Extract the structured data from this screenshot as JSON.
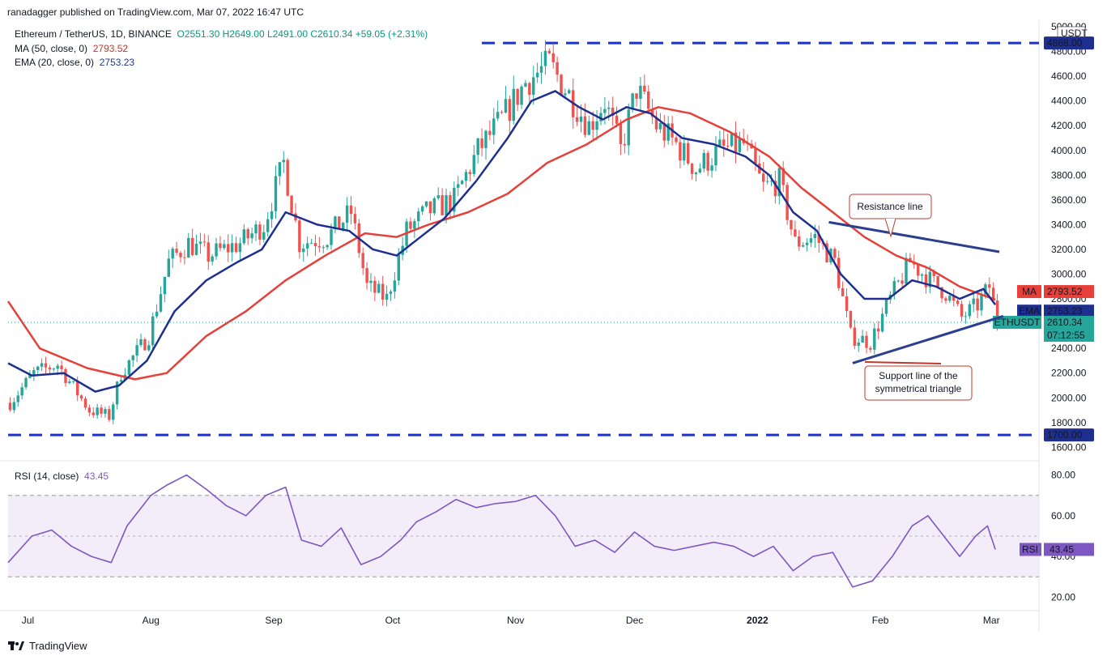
{
  "header": {
    "publisher": "ranadagger published on TradingView.com, Mar 07, 2022 16:47 UTC"
  },
  "legend": {
    "symbol": "Ethereum / TetherUS, 1D, BINANCE",
    "ohlc": "O2551.30  H2649.00  L2491.00  C2610.34  +59.05 (+2.31%)",
    "ma_label": "MA (50, close, 0)",
    "ma_value": "2793.52",
    "ema_label": "EMA (20, close, 0)",
    "ema_value": "2753.23",
    "rsi_label": "RSI (14, close)",
    "rsi_value": "43.45"
  },
  "footer": {
    "brand": "TradingView"
  },
  "colors": {
    "ma": "#e5403a",
    "ema": "#1e2f8f",
    "up": "#26a69a",
    "down": "#ef5350",
    "rsi": "#7e57c2",
    "level": "#1a33c9",
    "annotation": "#c0392b",
    "trend": "#2b3f8f"
  },
  "chart_data": [
    {
      "type": "candlestick",
      "title": "Ethereum / TetherUS, 1D, BINANCE",
      "y_unit": "USDT",
      "ylim": [
        1550,
        5000
      ],
      "y_ticks": [
        1600,
        1800,
        2000,
        2200,
        2400,
        2600,
        2800,
        3000,
        3200,
        3400,
        3600,
        3800,
        4000,
        4200,
        4400,
        4600,
        4800,
        5000
      ],
      "x_ticks": [
        "Jul",
        "Aug",
        "Sep",
        "Oct",
        "Nov",
        "Dec",
        "2022",
        "Feb",
        "Mar"
      ],
      "x_tick_days": [
        5,
        36,
        67,
        97,
        128,
        158,
        189,
        220,
        248
      ],
      "total_days": 260,
      "last_day": 249,
      "price_path": [
        {
          "d": 0,
          "p": 1960
        },
        {
          "d": 6,
          "p": 2200
        },
        {
          "d": 12,
          "p": 2270
        },
        {
          "d": 20,
          "p": 1900
        },
        {
          "d": 25,
          "p": 1850
        },
        {
          "d": 28,
          "p": 2200
        },
        {
          "d": 35,
          "p": 2500
        },
        {
          "d": 40,
          "p": 3100
        },
        {
          "d": 45,
          "p": 3250
        },
        {
          "d": 50,
          "p": 3150
        },
        {
          "d": 58,
          "p": 3250
        },
        {
          "d": 64,
          "p": 3400
        },
        {
          "d": 69,
          "p": 3900
        },
        {
          "d": 73,
          "p": 3250
        },
        {
          "d": 80,
          "p": 3300
        },
        {
          "d": 86,
          "p": 3500
        },
        {
          "d": 90,
          "p": 2900
        },
        {
          "d": 95,
          "p": 2800
        },
        {
          "d": 100,
          "p": 3350
        },
        {
          "d": 105,
          "p": 3500
        },
        {
          "d": 112,
          "p": 3600
        },
        {
          "d": 118,
          "p": 4000
        },
        {
          "d": 124,
          "p": 4250
        },
        {
          "d": 130,
          "p": 4550
        },
        {
          "d": 136,
          "p": 4700
        },
        {
          "d": 141,
          "p": 4450
        },
        {
          "d": 146,
          "p": 4200
        },
        {
          "d": 150,
          "p": 4400
        },
        {
          "d": 154,
          "p": 4000
        },
        {
          "d": 158,
          "p": 4500
        },
        {
          "d": 163,
          "p": 4200
        },
        {
          "d": 168,
          "p": 4050
        },
        {
          "d": 173,
          "p": 3850
        },
        {
          "d": 179,
          "p": 4000
        },
        {
          "d": 185,
          "p": 4050
        },
        {
          "d": 190,
          "p": 3700
        },
        {
          "d": 194,
          "p": 3750
        },
        {
          "d": 198,
          "p": 3250
        },
        {
          "d": 203,
          "p": 3300
        },
        {
          "d": 208,
          "p": 3100
        },
        {
          "d": 212,
          "p": 2500
        },
        {
          "d": 217,
          "p": 2450
        },
        {
          "d": 222,
          "p": 2800
        },
        {
          "d": 227,
          "p": 3100
        },
        {
          "d": 232,
          "p": 2950
        },
        {
          "d": 236,
          "p": 2850
        },
        {
          "d": 240,
          "p": 2650
        },
        {
          "d": 244,
          "p": 2750
        },
        {
          "d": 247,
          "p": 2900
        },
        {
          "d": 249,
          "p": 2610
        }
      ],
      "series": [
        {
          "name": "MA",
          "label_value": "2793.52",
          "points": [
            {
              "d": 0,
              "p": 2780
            },
            {
              "d": 8,
              "p": 2400
            },
            {
              "d": 20,
              "p": 2240
            },
            {
              "d": 32,
              "p": 2150
            },
            {
              "d": 40,
              "p": 2200
            },
            {
              "d": 50,
              "p": 2500
            },
            {
              "d": 60,
              "p": 2700
            },
            {
              "d": 70,
              "p": 2950
            },
            {
              "d": 80,
              "p": 3150
            },
            {
              "d": 90,
              "p": 3330
            },
            {
              "d": 98,
              "p": 3300
            },
            {
              "d": 106,
              "p": 3400
            },
            {
              "d": 116,
              "p": 3500
            },
            {
              "d": 126,
              "p": 3650
            },
            {
              "d": 136,
              "p": 3900
            },
            {
              "d": 146,
              "p": 4050
            },
            {
              "d": 156,
              "p": 4250
            },
            {
              "d": 164,
              "p": 4350
            },
            {
              "d": 172,
              "p": 4300
            },
            {
              "d": 182,
              "p": 4150
            },
            {
              "d": 192,
              "p": 3950
            },
            {
              "d": 200,
              "p": 3700
            },
            {
              "d": 208,
              "p": 3500
            },
            {
              "d": 216,
              "p": 3300
            },
            {
              "d": 224,
              "p": 3150
            },
            {
              "d": 232,
              "p": 3050
            },
            {
              "d": 240,
              "p": 2900
            },
            {
              "d": 249,
              "p": 2793.52
            }
          ]
        },
        {
          "name": "EMA",
          "label_value": "2753.23",
          "points": [
            {
              "d": 0,
              "p": 2280
            },
            {
              "d": 6,
              "p": 2180
            },
            {
              "d": 14,
              "p": 2200
            },
            {
              "d": 22,
              "p": 2050
            },
            {
              "d": 28,
              "p": 2100
            },
            {
              "d": 35,
              "p": 2300
            },
            {
              "d": 42,
              "p": 2700
            },
            {
              "d": 50,
              "p": 2950
            },
            {
              "d": 58,
              "p": 3100
            },
            {
              "d": 64,
              "p": 3200
            },
            {
              "d": 70,
              "p": 3500
            },
            {
              "d": 78,
              "p": 3400
            },
            {
              "d": 86,
              "p": 3350
            },
            {
              "d": 92,
              "p": 3200
            },
            {
              "d": 98,
              "p": 3150
            },
            {
              "d": 104,
              "p": 3300
            },
            {
              "d": 110,
              "p": 3450
            },
            {
              "d": 118,
              "p": 3750
            },
            {
              "d": 126,
              "p": 4100
            },
            {
              "d": 132,
              "p": 4400
            },
            {
              "d": 138,
              "p": 4480
            },
            {
              "d": 144,
              "p": 4350
            },
            {
              "d": 150,
              "p": 4250
            },
            {
              "d": 156,
              "p": 4350
            },
            {
              "d": 162,
              "p": 4300
            },
            {
              "d": 170,
              "p": 4100
            },
            {
              "d": 178,
              "p": 4050
            },
            {
              "d": 186,
              "p": 3950
            },
            {
              "d": 192,
              "p": 3800
            },
            {
              "d": 198,
              "p": 3500
            },
            {
              "d": 204,
              "p": 3350
            },
            {
              "d": 210,
              "p": 3000
            },
            {
              "d": 216,
              "p": 2800
            },
            {
              "d": 222,
              "p": 2800
            },
            {
              "d": 228,
              "p": 2950
            },
            {
              "d": 234,
              "p": 2900
            },
            {
              "d": 240,
              "p": 2800
            },
            {
              "d": 246,
              "p": 2880
            },
            {
              "d": 249,
              "p": 2753.23
            }
          ]
        }
      ],
      "last_price_label": "ETHUSDT",
      "last_price": "2610.34",
      "countdown": "07:12:55",
      "levels": [
        {
          "value": 4868.0,
          "label": "4868.00"
        },
        {
          "value": 1700.0,
          "label": "1700.00"
        }
      ],
      "trendlines": [
        {
          "name": "Resistance line",
          "from": {
            "d": 207,
            "p": 3420
          },
          "to": {
            "d": 250,
            "p": 3180
          }
        },
        {
          "name": "Support line of the symmetrical triangle",
          "from": {
            "d": 213,
            "p": 2280
          },
          "to": {
            "d": 251,
            "p": 2660
          }
        }
      ],
      "annotations": [
        {
          "text": "Resistance line"
        },
        {
          "text": "Support line of the symmetrical triangle"
        }
      ]
    },
    {
      "type": "line",
      "title": "RSI (14, close)",
      "name": "RSI",
      "ylim": [
        15,
        85
      ],
      "y_ticks": [
        20,
        40,
        60,
        80
      ],
      "band": [
        30,
        70
      ],
      "mid": 50,
      "last_value": "43.45",
      "points": [
        {
          "d": 0,
          "p": 37
        },
        {
          "d": 6,
          "p": 50
        },
        {
          "d": 11,
          "p": 53
        },
        {
          "d": 16,
          "p": 45
        },
        {
          "d": 21,
          "p": 40
        },
        {
          "d": 26,
          "p": 37
        },
        {
          "d": 30,
          "p": 55
        },
        {
          "d": 36,
          "p": 70
        },
        {
          "d": 40,
          "p": 75
        },
        {
          "d": 45,
          "p": 80
        },
        {
          "d": 50,
          "p": 73
        },
        {
          "d": 55,
          "p": 65
        },
        {
          "d": 60,
          "p": 60
        },
        {
          "d": 65,
          "p": 70
        },
        {
          "d": 70,
          "p": 74
        },
        {
          "d": 74,
          "p": 48
        },
        {
          "d": 79,
          "p": 45
        },
        {
          "d": 84,
          "p": 54
        },
        {
          "d": 89,
          "p": 36
        },
        {
          "d": 94,
          "p": 40
        },
        {
          "d": 99,
          "p": 48
        },
        {
          "d": 103,
          "p": 57
        },
        {
          "d": 108,
          "p": 62
        },
        {
          "d": 113,
          "p": 68
        },
        {
          "d": 118,
          "p": 64
        },
        {
          "d": 123,
          "p": 66
        },
        {
          "d": 128,
          "p": 67
        },
        {
          "d": 133,
          "p": 70
        },
        {
          "d": 138,
          "p": 60
        },
        {
          "d": 143,
          "p": 45
        },
        {
          "d": 148,
          "p": 48
        },
        {
          "d": 153,
          "p": 42
        },
        {
          "d": 158,
          "p": 52
        },
        {
          "d": 163,
          "p": 45
        },
        {
          "d": 168,
          "p": 43
        },
        {
          "d": 173,
          "p": 45
        },
        {
          "d": 178,
          "p": 47
        },
        {
          "d": 183,
          "p": 45
        },
        {
          "d": 188,
          "p": 40
        },
        {
          "d": 193,
          "p": 45
        },
        {
          "d": 198,
          "p": 33
        },
        {
          "d": 203,
          "p": 40
        },
        {
          "d": 208,
          "p": 42
        },
        {
          "d": 213,
          "p": 25
        },
        {
          "d": 218,
          "p": 28
        },
        {
          "d": 223,
          "p": 40
        },
        {
          "d": 228,
          "p": 55
        },
        {
          "d": 232,
          "p": 60
        },
        {
          "d": 236,
          "p": 50
        },
        {
          "d": 240,
          "p": 40
        },
        {
          "d": 244,
          "p": 50
        },
        {
          "d": 247,
          "p": 55
        },
        {
          "d": 249,
          "p": 43.45
        }
      ]
    }
  ]
}
